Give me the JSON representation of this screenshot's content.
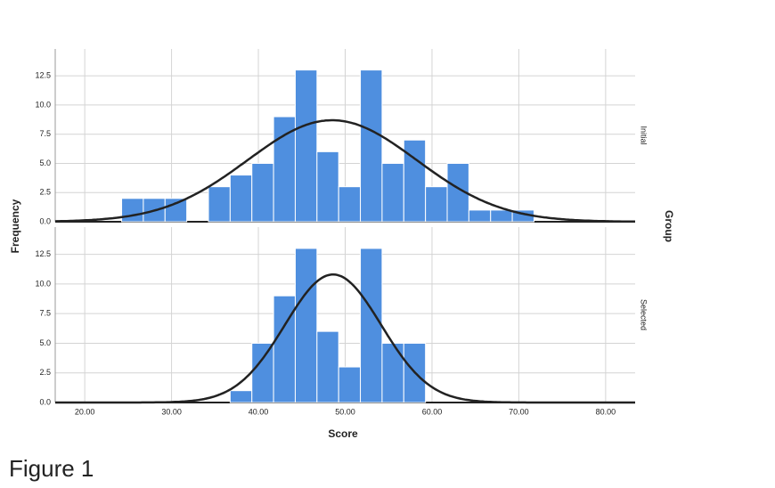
{
  "caption": "Figure 1",
  "chart_data": {
    "type": "histogram",
    "x_label": "Score",
    "y_label": "Frequency",
    "facet_label": "Group",
    "bins": [
      24.25,
      26.75,
      29.25,
      31.75,
      34.25,
      36.75,
      39.25,
      41.75,
      44.25,
      46.75,
      49.25,
      51.75,
      54.25,
      56.75,
      59.25,
      61.75,
      64.25,
      66.75,
      69.25,
      71.75
    ],
    "series": [
      {
        "name": "Initial",
        "color": "#4f8fdf",
        "values": [
          2,
          2,
          2,
          0,
          3,
          4,
          5,
          9,
          13,
          6,
          3,
          13,
          5,
          7,
          3,
          5,
          1,
          1,
          1
        ],
        "fit": {
          "mean": 48.5,
          "sd": 9.75
        }
      },
      {
        "name": "Selected",
        "color": "#4f8fdf",
        "values": [
          0,
          0,
          0,
          0,
          0,
          1,
          5,
          9,
          13,
          6,
          3,
          13,
          5,
          5,
          0,
          0,
          0,
          0,
          0
        ],
        "fit": {
          "mean": 48.6,
          "sd": 5.54
        }
      }
    ],
    "xlim": [
      16.6,
      83.4
    ],
    "xticks": [
      {
        "value": 20,
        "label": "20.00"
      },
      {
        "value": 30,
        "label": "30.00"
      },
      {
        "value": 40,
        "label": "40.00"
      },
      {
        "value": 50,
        "label": "50.00"
      },
      {
        "value": 60,
        "label": "60.00"
      },
      {
        "value": 70,
        "label": "70.00"
      },
      {
        "value": 80,
        "label": "80.00"
      }
    ],
    "ylim": [
      0,
      14.8
    ],
    "yticks": [
      {
        "value": 0,
        "label": "0.0"
      },
      2.5,
      {
        "value": 5,
        "label": "5.0"
      },
      7.5,
      {
        "value": 10,
        "label": "10.0"
      },
      12.5
    ],
    "curve_color": "#222222",
    "grid": true
  }
}
